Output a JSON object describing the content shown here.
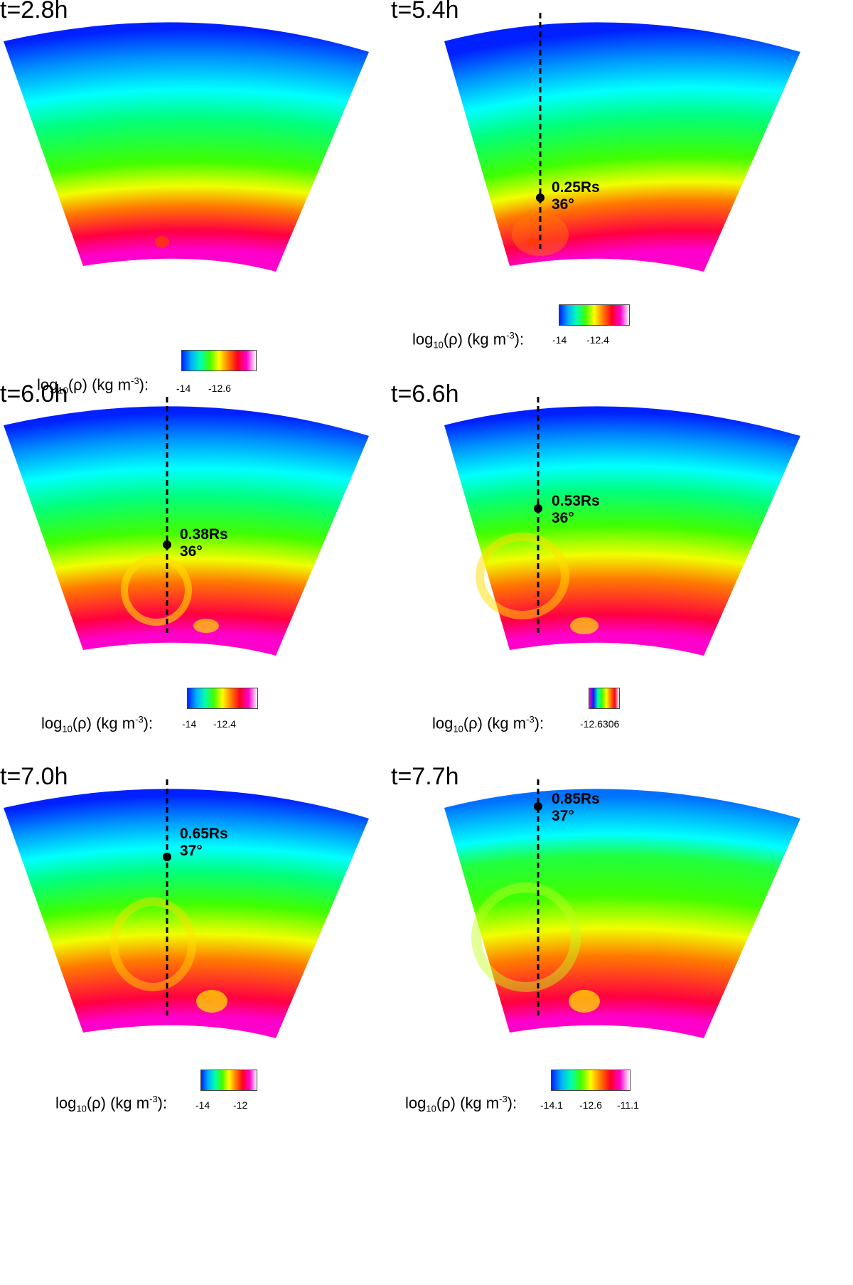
{
  "panels": [
    {
      "time": "t=2.8h",
      "colorbar": {
        "label_prefix": "log",
        "label_sub": "10",
        "label_mid": "(ρ) (kg m",
        "label_sup": "-3",
        "label_suffix": "):",
        "ticks": [
          "-14",
          "-12.6"
        ]
      }
    },
    {
      "time": "t=5.4h",
      "marker": {
        "height": "0.25Rs",
        "angle": "36°"
      },
      "colorbar": {
        "label_prefix": "log",
        "label_sub": "10",
        "label_mid": "(ρ) (kg m",
        "label_sup": "-3",
        "label_suffix": "):",
        "ticks": [
          "-14",
          "-12.4"
        ]
      }
    },
    {
      "time": "t=6.0h",
      "marker": {
        "height": "0.38Rs",
        "angle": "36°"
      },
      "colorbar": {
        "label_prefix": "log",
        "label_sub": "10",
        "label_mid": "(ρ) (kg m",
        "label_sup": "-3",
        "label_suffix": "):",
        "ticks": [
          "-14",
          "-12.4"
        ]
      }
    },
    {
      "time": "t=6.6h",
      "marker": {
        "height": "0.53Rs",
        "angle": "36°"
      },
      "colorbar": {
        "label_prefix": "log",
        "label_sub": "10",
        "label_mid": "(ρ) (kg m",
        "label_sup": "-3",
        "label_suffix": "):",
        "ticks": [
          "-12.6306"
        ]
      }
    },
    {
      "time": "t=7.0h",
      "marker": {
        "height": "0.65Rs",
        "angle": "37°"
      },
      "colorbar": {
        "label_prefix": "log",
        "label_sub": "10",
        "label_mid": "(ρ) (kg m",
        "label_sup": "-3",
        "label_suffix": "):",
        "ticks": [
          "-14",
          "-12"
        ]
      }
    },
    {
      "time": "t=7.7h",
      "marker": {
        "height": "0.85Rs",
        "angle": "37°"
      },
      "colorbar": {
        "label_prefix": "log",
        "label_sub": "10",
        "label_mid": "(ρ) (kg m",
        "label_sup": "-3",
        "label_suffix": "):",
        "ticks": [
          "-14.1",
          "-12.6",
          "-11.1"
        ]
      }
    }
  ]
}
